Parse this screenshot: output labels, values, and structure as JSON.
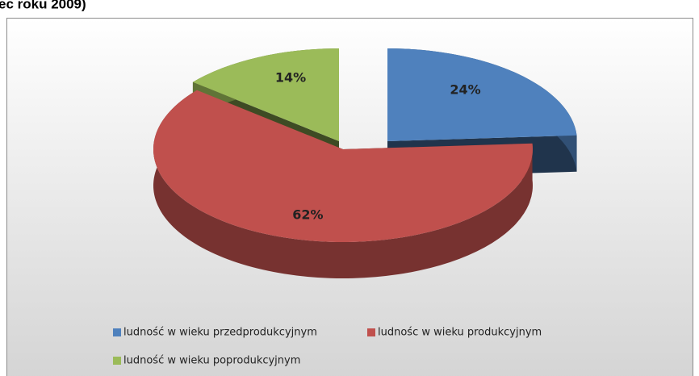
{
  "chart_data": {
    "type": "pie",
    "title": "ec roku 2009)",
    "categories": [
      "ludność w wieku przedprodukcyjnym",
      "ludnośc w wieku produkcyjnym",
      "ludność w wieku poprodukcyjnym"
    ],
    "values": [
      24,
      62,
      14
    ],
    "value_labels": [
      "24%",
      "62%",
      "14%"
    ],
    "colors": [
      "#4f81bd",
      "#c0504d",
      "#9bbb59"
    ],
    "legend": "bottom"
  }
}
